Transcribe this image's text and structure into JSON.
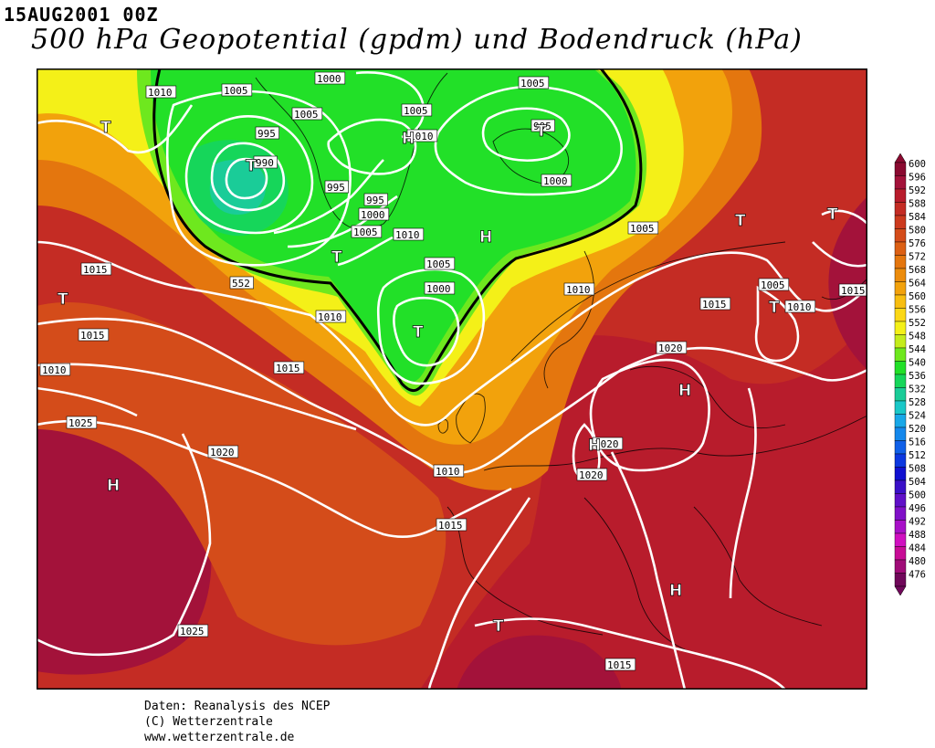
{
  "header": {
    "date": "15AUG2001 00Z",
    "title": "500 hPa Geopotential (gpdm) und Bodendruck (hPa)"
  },
  "credits": {
    "line1": "Daten: Reanalysis des NCEP",
    "line2": "(C) Wetterzentrale",
    "line3": "www.wetterzentrale.de"
  },
  "legend": {
    "levels": [
      "600",
      "596",
      "592",
      "588",
      "584",
      "580",
      "576",
      "572",
      "568",
      "564",
      "560",
      "556",
      "552",
      "548",
      "544",
      "540",
      "536",
      "532",
      "528",
      "524",
      "520",
      "516",
      "512",
      "508",
      "504",
      "500",
      "496",
      "492",
      "488",
      "484",
      "480",
      "476"
    ],
    "colors": [
      "#8a0a30",
      "#a3123a",
      "#b81c2c",
      "#c42c24",
      "#cc3a1e",
      "#d44c1a",
      "#dc6014",
      "#e4760e",
      "#ec8c0c",
      "#f2a20c",
      "#f8be10",
      "#fcd816",
      "#f4f018",
      "#c4ec1c",
      "#6ee81e",
      "#22e028",
      "#16d65a",
      "#1acc98",
      "#1ac8c8",
      "#18a8e8",
      "#1488ec",
      "#1060e8",
      "#0c38e0",
      "#1010d0",
      "#3a10c8",
      "#6010c8",
      "#8010c8",
      "#a810c8",
      "#d010c0",
      "#c80c96",
      "#a00c78",
      "#70085a"
    ]
  },
  "map": {
    "field_colors": {
      "green": "#16d65a",
      "yellow": "#f4f018",
      "orange": "#e4760e",
      "red": "#c42c24",
      "crimson": "#a3123a"
    },
    "pressure_labels": [
      "1010",
      "1005",
      "1000",
      "1005",
      "1005",
      "995",
      "1005",
      "995",
      "1010",
      "990",
      "1000",
      "995",
      "995",
      "1000",
      "1005",
      "1010",
      "1005",
      "1005",
      "1015",
      "1005",
      "1000",
      "1010",
      "1010",
      "1015",
      "1015",
      "1010",
      "1015",
      "1010",
      "1015",
      "1020",
      "1020",
      "1025",
      "1020",
      "1010",
      "1020",
      "1015",
      "1025",
      "1015",
      "552"
    ],
    "centers": [
      "T",
      "H",
      "T",
      "T",
      "T",
      "H",
      "T",
      "T",
      "T",
      "T",
      "T",
      "H",
      "H",
      "H",
      "T",
      "H"
    ]
  }
}
